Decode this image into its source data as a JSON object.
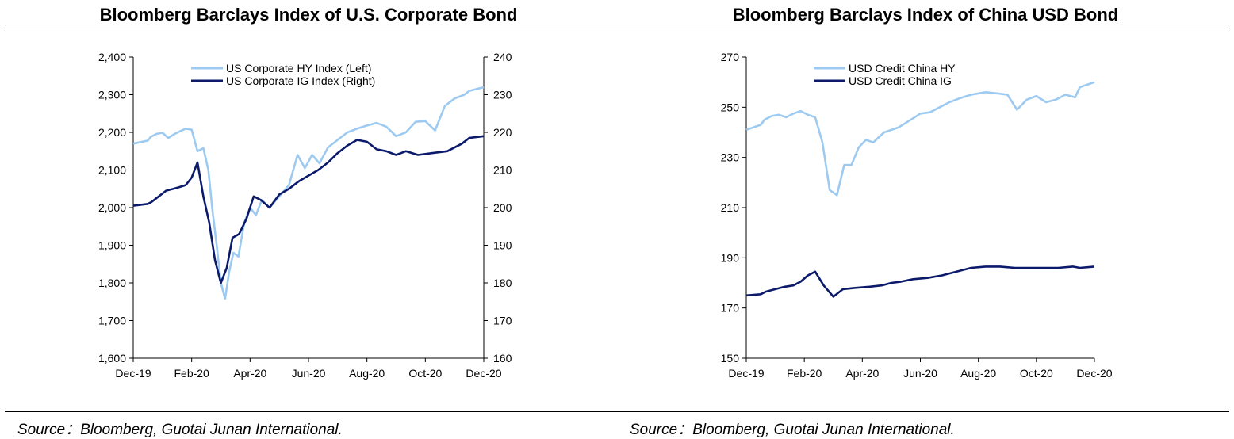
{
  "charts": [
    {
      "title": "Bloomberg Barclays Index of U.S. Corporate Bond",
      "source": "Source：Bloomberg, Guotai Junan International."
    },
    {
      "title": "Bloomberg Barclays Index of China USD Bond",
      "source": "Source：Bloomberg, Guotai Junan International."
    }
  ],
  "chart_data": [
    {
      "type": "line",
      "title": "Bloomberg Barclays Index of U.S. Corporate Bond",
      "x_ticks": [
        "Dec-19",
        "Feb-20",
        "Apr-20",
        "Jun-20",
        "Aug-20",
        "Oct-20",
        "Dec-20"
      ],
      "y_left": {
        "ticks": [
          "1,600",
          "1,700",
          "1,800",
          "1,900",
          "2,000",
          "2,100",
          "2,200",
          "2,300",
          "2,400"
        ],
        "ylim": [
          1600,
          2400
        ]
      },
      "y_right": {
        "ticks": [
          "160",
          "170",
          "180",
          "190",
          "200",
          "210",
          "220",
          "230",
          "240"
        ],
        "ylim": [
          160,
          240
        ]
      },
      "legend_position": "top-center",
      "series": [
        {
          "name": "US Corporate HY  Index (Left)",
          "axis": "left",
          "color": "#9dcaf0",
          "points": [
            [
              "Dec-19",
              2170
            ],
            [
              "Dec-19",
              2178
            ],
            [
              "Jan-20",
              2188
            ],
            [
              "Jan-20",
              2196
            ],
            [
              "Jan-20",
              2199
            ],
            [
              "Jan-20",
              2185
            ],
            [
              "Jan-20",
              2195
            ],
            [
              "Feb-20",
              2203
            ],
            [
              "Feb-20",
              2210
            ],
            [
              "Feb-20",
              2207
            ],
            [
              "Feb-20",
              2150
            ],
            [
              "Feb-20",
              2158
            ],
            [
              "Mar-20",
              2100
            ],
            [
              "Mar-20",
              1990
            ],
            [
              "Mar-20",
              1900
            ],
            [
              "Mar-20",
              1800
            ],
            [
              "Mar-20",
              1758
            ],
            [
              "Mar-20",
              1830
            ],
            [
              "Mar-20",
              1880
            ],
            [
              "Apr-20",
              1870
            ],
            [
              "Apr-20",
              1960
            ],
            [
              "Apr-20",
              2000
            ],
            [
              "Apr-20",
              1980
            ],
            [
              "Apr-20",
              2020
            ],
            [
              "May-20",
              2000
            ],
            [
              "May-20",
              2030
            ],
            [
              "May-20",
              2060
            ],
            [
              "Jun-20",
              2140
            ],
            [
              "Jun-20",
              2105
            ],
            [
              "Jun-20",
              2140
            ],
            [
              "Jun-20",
              2118
            ],
            [
              "Jul-20",
              2160
            ],
            [
              "Jul-20",
              2180
            ],
            [
              "Jul-20",
              2200
            ],
            [
              "Aug-20",
              2210
            ],
            [
              "Aug-20",
              2218
            ],
            [
              "Aug-20",
              2225
            ],
            [
              "Sep-20",
              2215
            ],
            [
              "Sep-20",
              2190
            ],
            [
              "Sep-20",
              2200
            ],
            [
              "Oct-20",
              2228
            ],
            [
              "Oct-20",
              2230
            ],
            [
              "Oct-20",
              2205
            ],
            [
              "Nov-20",
              2270
            ],
            [
              "Nov-20",
              2290
            ],
            [
              "Nov-20",
              2300
            ],
            [
              "Dec-20",
              2310
            ],
            [
              "Dec-20",
              2320
            ]
          ]
        },
        {
          "name": "US Corporate IG Index (Right)",
          "axis": "right",
          "color": "#0b1a6b",
          "points": [
            [
              "Dec-19",
              200.5
            ],
            [
              "Dec-19",
              201
            ],
            [
              "Jan-20",
              201.5
            ],
            [
              "Jan-20",
              203
            ],
            [
              "Jan-20",
              204.5
            ],
            [
              "Jan-20",
              205
            ],
            [
              "Feb-20",
              205.5
            ],
            [
              "Feb-20",
              206
            ],
            [
              "Feb-20",
              208
            ],
            [
              "Feb-20",
              212
            ],
            [
              "Feb-20",
              203
            ],
            [
              "Mar-20",
              196
            ],
            [
              "Mar-20",
              186
            ],
            [
              "Mar-20",
              180
            ],
            [
              "Mar-20",
              184
            ],
            [
              "Mar-20",
              192
            ],
            [
              "Apr-20",
              193
            ],
            [
              "Apr-20",
              197
            ],
            [
              "Apr-20",
              203
            ],
            [
              "Apr-20",
              202
            ],
            [
              "May-20",
              200
            ],
            [
              "May-20",
              203.5
            ],
            [
              "May-20",
              205
            ],
            [
              "Jun-20",
              207
            ],
            [
              "Jun-20",
              208.5
            ],
            [
              "Jun-20",
              210
            ],
            [
              "Jul-20",
              212
            ],
            [
              "Jul-20",
              214.5
            ],
            [
              "Jul-20",
              216.5
            ],
            [
              "Aug-20",
              218
            ],
            [
              "Aug-20",
              217.5
            ],
            [
              "Aug-20",
              215.5
            ],
            [
              "Sep-20",
              215
            ],
            [
              "Sep-20",
              214
            ],
            [
              "Sep-20",
              215
            ],
            [
              "Oct-20",
              214
            ],
            [
              "Oct-20",
              214.5
            ],
            [
              "Nov-20",
              215
            ],
            [
              "Nov-20",
              217
            ],
            [
              "Dec-20",
              218.5
            ],
            [
              "Dec-20",
              219
            ]
          ]
        }
      ]
    },
    {
      "type": "line",
      "title": "Bloomberg Barclays Index of China USD Bond",
      "x_ticks": [
        "Dec-19",
        "Feb-20",
        "Apr-20",
        "Jun-20",
        "Aug-20",
        "Oct-20",
        "Dec-20"
      ],
      "y_left": {
        "ticks": [
          "150",
          "170",
          "190",
          "210",
          "230",
          "250",
          "270"
        ],
        "ylim": [
          150,
          270
        ]
      },
      "legend_position": "top-left",
      "series": [
        {
          "name": "USD Credit China HY",
          "color": "#9dcaf0",
          "points": [
            [
              "Dec-19",
              241
            ],
            [
              "Dec-19",
              243
            ],
            [
              "Jan-20",
              245
            ],
            [
              "Jan-20",
              246.5
            ],
            [
              "Jan-20",
              247
            ],
            [
              "Jan-20",
              246
            ],
            [
              "Feb-20",
              247.5
            ],
            [
              "Feb-20",
              248.5
            ],
            [
              "Feb-20",
              247
            ],
            [
              "Feb-20",
              246
            ],
            [
              "Mar-20",
              236
            ],
            [
              "Mar-20",
              217
            ],
            [
              "Mar-20",
              215
            ],
            [
              "Mar-20",
              227
            ],
            [
              "Apr-20",
              227
            ],
            [
              "Apr-20",
              234
            ],
            [
              "Apr-20",
              237
            ],
            [
              "Apr-20",
              236
            ],
            [
              "May-20",
              240
            ],
            [
              "May-20",
              242
            ],
            [
              "Jun-20",
              245
            ],
            [
              "Jun-20",
              247.5
            ],
            [
              "Jun-20",
              248
            ],
            [
              "Jul-20",
              250
            ],
            [
              "Jul-20",
              252
            ],
            [
              "Jul-20",
              253.5
            ],
            [
              "Aug-20",
              255
            ],
            [
              "Aug-20",
              256
            ],
            [
              "Sep-20",
              255.5
            ],
            [
              "Sep-20",
              255
            ],
            [
              "Sep-20",
              249
            ],
            [
              "Oct-20",
              253
            ],
            [
              "Oct-20",
              254.5
            ],
            [
              "Oct-20",
              252
            ],
            [
              "Nov-20",
              253
            ],
            [
              "Nov-20",
              255
            ],
            [
              "Nov-20",
              254
            ],
            [
              "Dec-20",
              258
            ],
            [
              "Dec-20",
              260
            ]
          ]
        },
        {
          "name": "USD Credit China IG",
          "color": "#0b1a6b",
          "points": [
            [
              "Dec-19",
              175
            ],
            [
              "Dec-19",
              175.5
            ],
            [
              "Jan-20",
              176.5
            ],
            [
              "Jan-20",
              177.5
            ],
            [
              "Jan-20",
              178.5
            ],
            [
              "Feb-20",
              179
            ],
            [
              "Feb-20",
              180.5
            ],
            [
              "Feb-20",
              183
            ],
            [
              "Feb-20",
              184.5
            ],
            [
              "Mar-20",
              179
            ],
            [
              "Mar-20",
              174.5
            ],
            [
              "Mar-20",
              177.5
            ],
            [
              "Apr-20",
              178
            ],
            [
              "Apr-20",
              178.5
            ],
            [
              "May-20",
              179
            ],
            [
              "May-20",
              180
            ],
            [
              "May-20",
              180.5
            ],
            [
              "Jun-20",
              181.5
            ],
            [
              "Jun-20",
              182
            ],
            [
              "Jul-20",
              183
            ],
            [
              "Jul-20",
              184.5
            ],
            [
              "Aug-20",
              186
            ],
            [
              "Aug-20",
              186.5
            ],
            [
              "Sep-20",
              186.5
            ],
            [
              "Sep-20",
              186
            ],
            [
              "Oct-20",
              186
            ],
            [
              "Nov-20",
              186
            ],
            [
              "Nov-20",
              186.5
            ],
            [
              "Dec-20",
              186
            ],
            [
              "Dec-20",
              186.5
            ]
          ]
        }
      ]
    }
  ]
}
